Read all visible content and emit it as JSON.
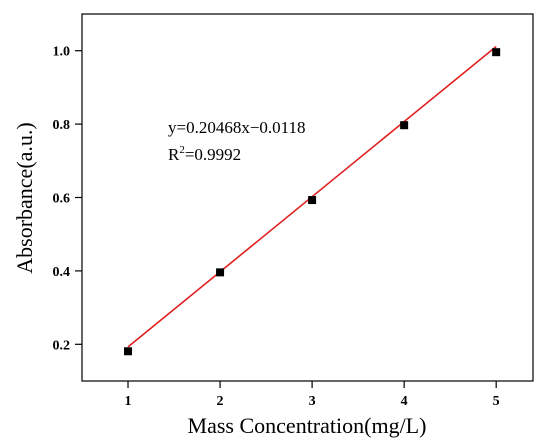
{
  "chart_data": {
    "type": "scatter",
    "title": "",
    "xlabel": "Mass Concentration(mg/L)",
    "ylabel": "Absorbance(a.u.)",
    "xlim": [
      0.5,
      5.4
    ],
    "ylim": [
      0.1,
      1.1
    ],
    "x_ticks": [
      "1",
      "2",
      "3",
      "4",
      "5"
    ],
    "y_ticks": [
      "0.2",
      "0.4",
      "0.6",
      "0.8",
      "1.0"
    ],
    "grid": false,
    "series": [
      {
        "x": [
          1,
          2,
          3,
          4,
          5
        ],
        "values": [
          0.181,
          0.396,
          0.593,
          0.797,
          0.996
        ],
        "marker": "square",
        "color": "#000000"
      }
    ],
    "fit_line": {
      "slope": 0.20468,
      "intercept": -0.0118,
      "x_range": [
        1,
        5
      ],
      "color": "#e02020"
    },
    "annotations": {
      "equation": "y=0.20468x−0.0118",
      "r2_prefix": "R",
      "r2_sup": "2",
      "r2_value": "=0.9992"
    }
  }
}
